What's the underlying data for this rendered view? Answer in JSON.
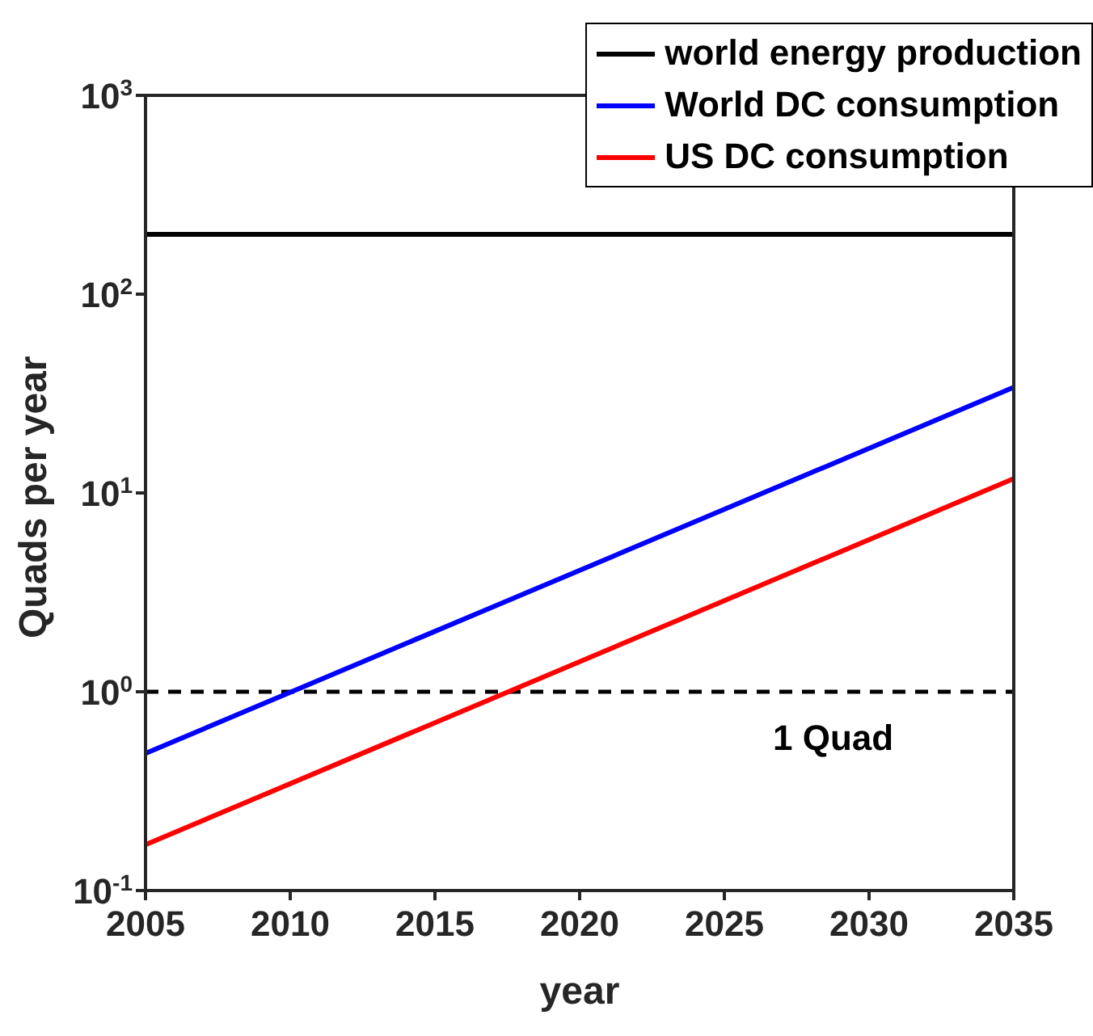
{
  "chart_data": {
    "type": "line",
    "xlabel": "year",
    "ylabel": "Quads per year",
    "log": "y",
    "xlim": [
      2005,
      2035
    ],
    "xticks": [
      2005,
      2010,
      2015,
      2020,
      2025,
      2030,
      2035
    ],
    "ylim": [
      0.1,
      1000
    ],
    "yticks": [
      {
        "value": 0.1,
        "label": "10$^{-1}$"
      },
      {
        "value": 1,
        "label": "10$^{0}$"
      },
      {
        "value": 10,
        "label": "10$^{1}$"
      },
      {
        "value": 100,
        "label": "10$^{2}$"
      },
      {
        "value": 1000,
        "label": "10$^{3}$"
      }
    ],
    "legend": "top right",
    "marker": "none",
    "line_style": "solid",
    "x": [
      2005,
      2035
    ],
    "series": [
      {
        "name": "world energy production",
        "color": "#000000",
        "values": [
          200,
          200
        ]
      },
      {
        "name": "World DC consumption",
        "color": "#0000ff",
        "values": [
          0.49,
          34
        ]
      },
      {
        "name": "US DC consumption",
        "color": "#ff0000",
        "values": [
          0.17,
          11.8
        ]
      }
    ],
    "ref_lines": [
      {
        "axis": "y",
        "value": 1,
        "color": "#000000",
        "line_style": "dashed"
      }
    ],
    "annotations": [
      "1 Quad"
    ]
  }
}
